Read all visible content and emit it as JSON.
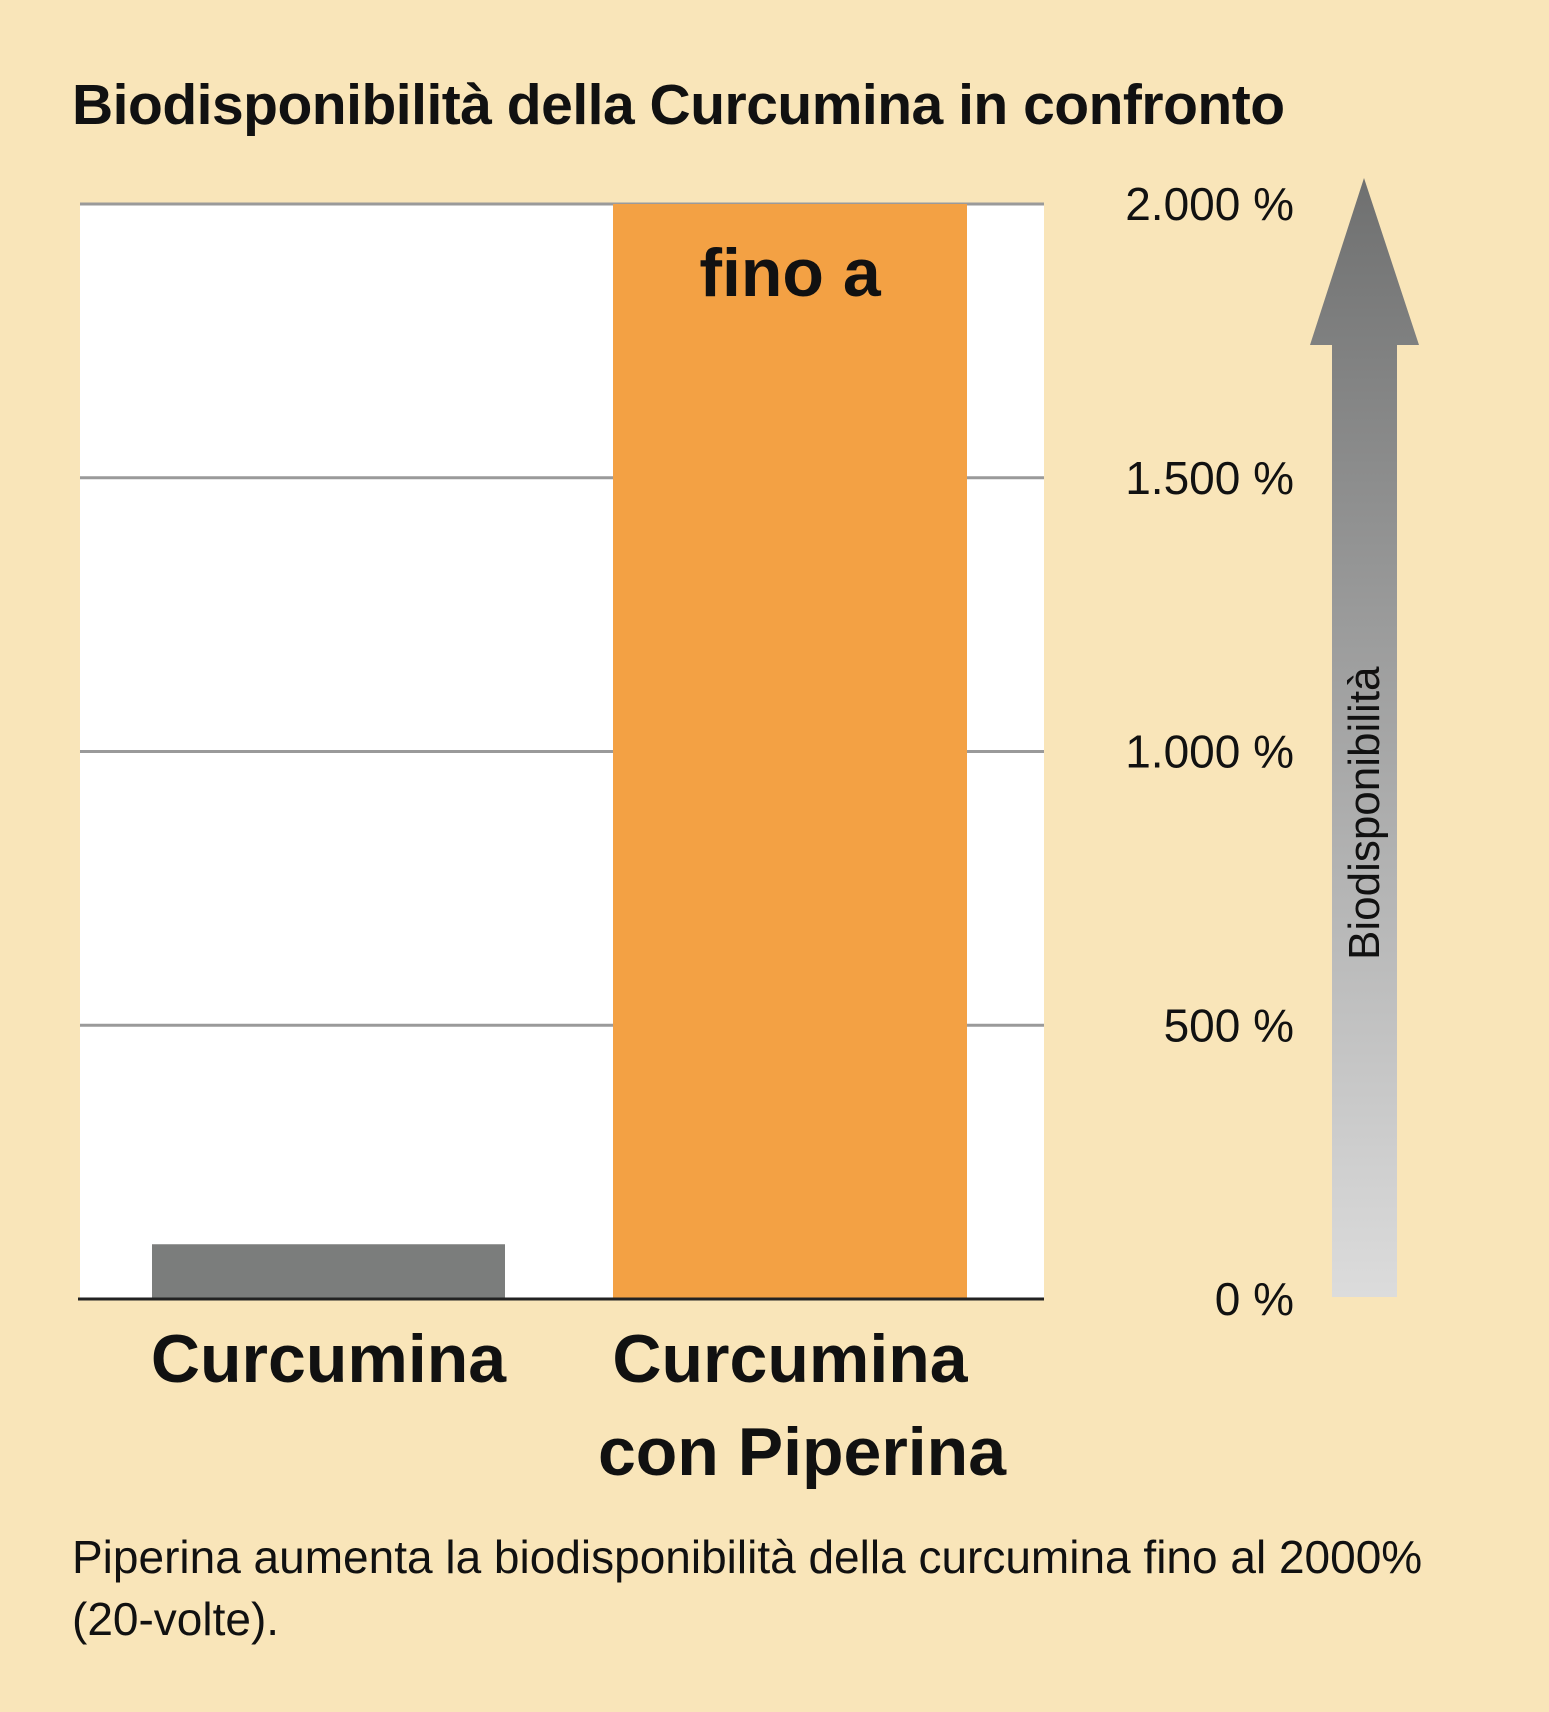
{
  "chart_data": {
    "type": "bar",
    "title": "Biodisponibilità della Curcumina in confronto",
    "categories": [
      "Curcumina",
      "Curcumina con Piperina"
    ],
    "category_lines": [
      [
        "Curcumina"
      ],
      [
        "Curcumina",
        "con Piperina"
      ]
    ],
    "values": [
      100,
      2000
    ],
    "bar_colors": [
      "#7b7d7c",
      "#f3a144"
    ],
    "bar_annotation": "fino a",
    "ylim": [
      0,
      2000
    ],
    "yticks": [
      0,
      500,
      1000,
      1500,
      2000
    ],
    "ytick_labels": [
      "0 %",
      "500 %",
      "1.000 %",
      "1.500 %",
      "2.000 %"
    ],
    "ylabel": "Biodisponibilità",
    "grid": true,
    "colors": {
      "background": "#f9e5b9",
      "plot": "#ffffff",
      "grid": "#9a9a9a",
      "arrow_top": "#6f7070",
      "arrow_bottom": "#dcdcdc"
    }
  },
  "note": "Piperina aumenta la biodisponibilità della curcumina fino al 2000% (20-volte)."
}
